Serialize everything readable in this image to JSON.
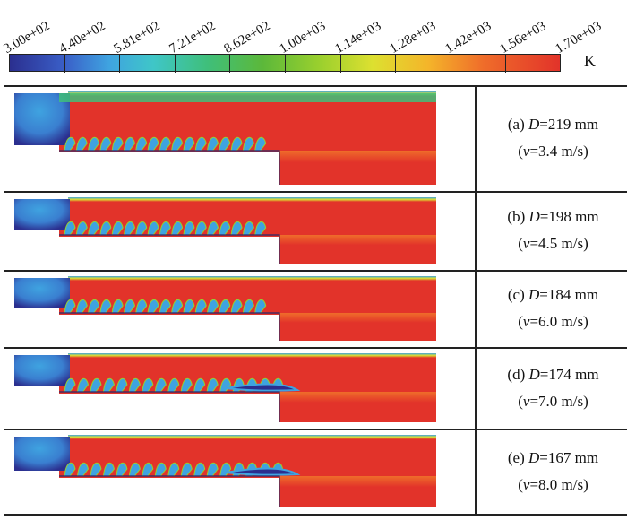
{
  "colorbar": {
    "ticks": [
      "3.00e+02",
      "4.40e+02",
      "5.81e+02",
      "7.21e+02",
      "8.62e+02",
      "1.00e+03",
      "1.14e+03",
      "1.28e+03",
      "1.42e+03",
      "1.56e+03",
      "1.70e+03"
    ],
    "unit": "K",
    "colors": [
      "#2b2f8f",
      "#3fa3e0",
      "#3fbf7a",
      "#98cf2e",
      "#dde030",
      "#ef6d2a",
      "#e2332a"
    ]
  },
  "panels": [
    {
      "letter": "(a)",
      "dvar": "D",
      "dval": "=219 mm",
      "vopen": "(",
      "vvar": "v",
      "vval": "=3.4 m/s)"
    },
    {
      "letter": "(b)",
      "dvar": "D",
      "dval": "=198 mm",
      "vopen": "(",
      "vvar": "v",
      "vval": "=4.5 m/s)"
    },
    {
      "letter": "(c)",
      "dvar": "D",
      "dval": "=184 mm",
      "vopen": "(",
      "vvar": "v",
      "vval": "=6.0 m/s)"
    },
    {
      "letter": "(d)",
      "dvar": "D",
      "dval": "=174 mm",
      "vopen": "(",
      "vvar": "v",
      "vval": "=7.0 m/s)"
    },
    {
      "letter": "(e)",
      "dvar": "D",
      "dval": "=167 mm",
      "vopen": "(",
      "vvar": "v",
      "vval": "=8.0 m/s)"
    }
  ]
}
